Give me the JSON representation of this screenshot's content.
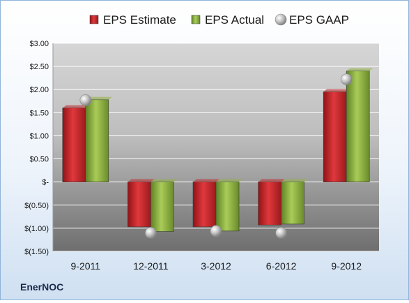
{
  "chart_data": {
    "type": "bar",
    "categories": [
      "9-2011",
      "12-2011",
      "3-2012",
      "6-2012",
      "9-2012"
    ],
    "series": [
      {
        "name": "EPS Estimate",
        "kind": "bar",
        "color": "#c0282c",
        "values": [
          1.6,
          -0.97,
          -0.97,
          -0.93,
          1.95
        ]
      },
      {
        "name": "EPS Actual",
        "kind": "bar",
        "color": "#8fb23d",
        "values": [
          1.78,
          -1.07,
          -1.06,
          -0.91,
          2.4
        ]
      },
      {
        "name": "EPS GAAP",
        "kind": "marker",
        "color": "#bfbfbf",
        "values": [
          1.77,
          -1.1,
          -1.06,
          -1.1,
          2.22
        ]
      }
    ],
    "ylim": [
      -1.5,
      3.0
    ],
    "yticks": [
      3.0,
      2.5,
      2.0,
      1.5,
      1.0,
      0.5,
      0,
      -0.5,
      -1.0,
      -1.5
    ],
    "ytick_labels": [
      "$3.00",
      "$2.50",
      "$2.00",
      "$1.50",
      "$1.00",
      "$0.50",
      "$-",
      "$(0.50)",
      "$(1.00)",
      "$(1.50)"
    ],
    "grid": true,
    "legend": "top",
    "colors": {
      "plot_top": "#c8c8c8",
      "plot_bottom": "#7a7a7a",
      "grid": "#ffffff"
    }
  },
  "brand_label": "EnerNOC"
}
